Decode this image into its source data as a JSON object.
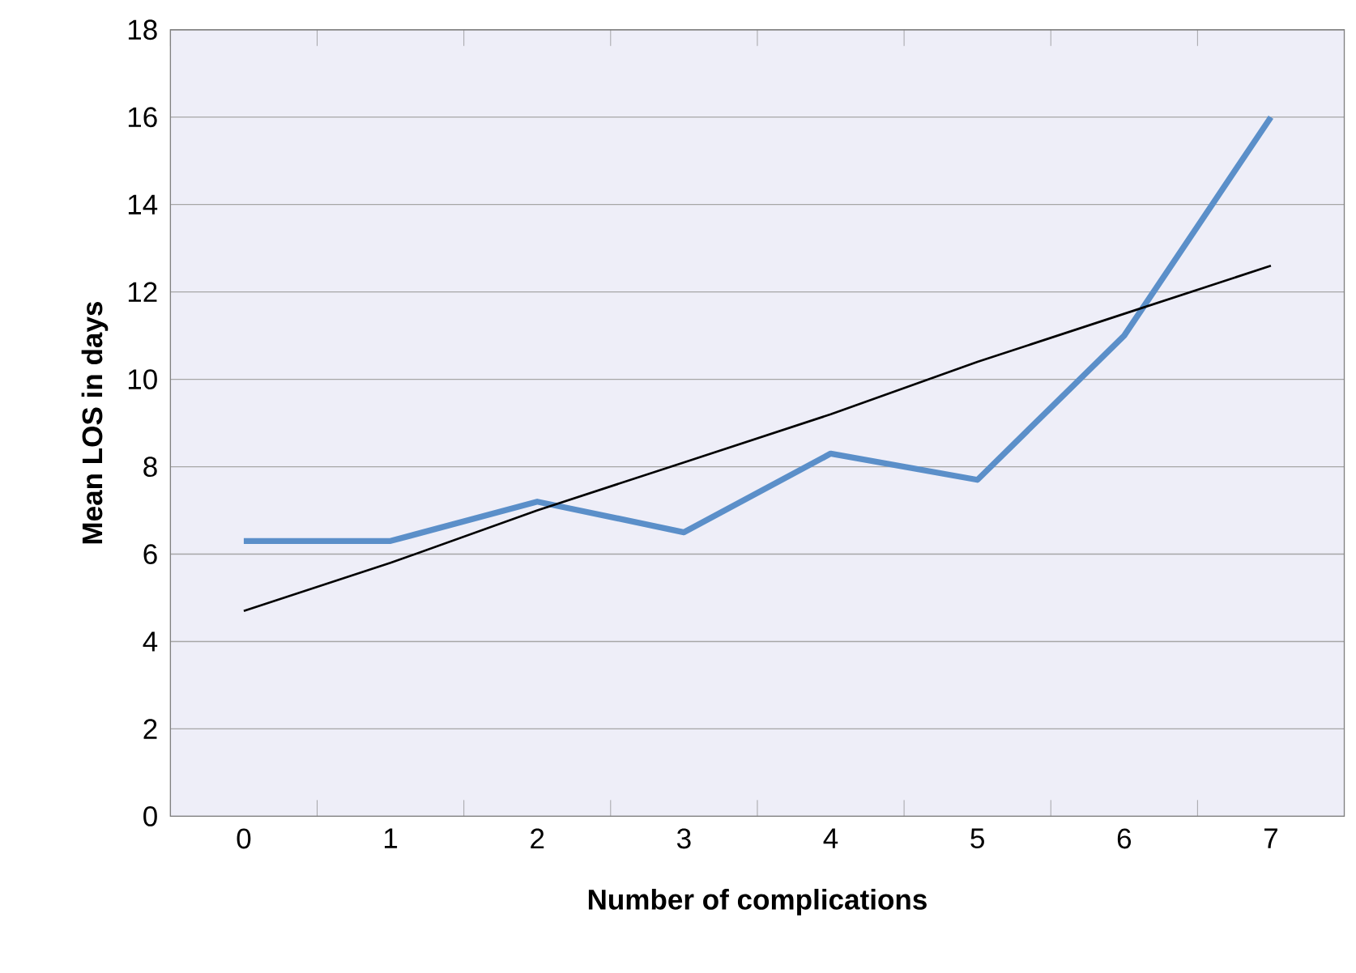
{
  "chart_data": {
    "type": "line",
    "xlabel": "Number of complications",
    "ylabel": "Mean LOS in days",
    "categories": [
      "0",
      "1",
      "2",
      "3",
      "4",
      "5",
      "6",
      "7"
    ],
    "series": [
      {
        "color": "#5b8fc9",
        "values": [
          6.3,
          6.3,
          7.2,
          6.5,
          8.3,
          7.7,
          11.0,
          16.0
        ]
      },
      {
        "color": "#000000",
        "values": [
          4.7,
          5.8,
          7.0,
          8.1,
          9.2,
          10.4,
          11.5,
          12.6
        ]
      }
    ],
    "ylim": [
      0,
      18
    ],
    "yticks": [
      0,
      2,
      4,
      6,
      8,
      10,
      12,
      14,
      16,
      18
    ],
    "grid": "y",
    "marker": "none"
  }
}
